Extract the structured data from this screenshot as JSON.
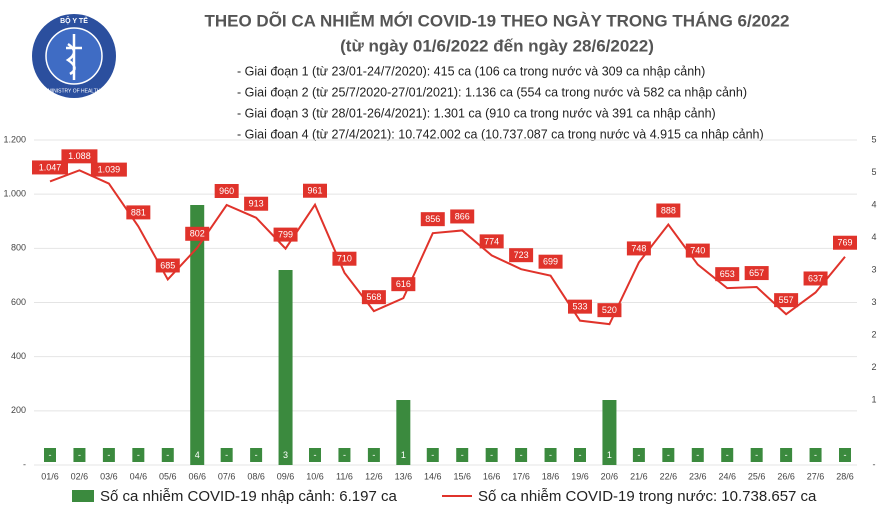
{
  "logo": {
    "top": "BỘ Y TẾ",
    "bottom": "MINISTRY OF HEALTH"
  },
  "chart_data": {
    "type": "combo",
    "title": "THEO DÕI CA NHIỄM MỚI COVID-19 THEO NGÀY TRONG THÁNG 6/2022",
    "subtitle": "(từ ngày 01/6/2022 đến ngày 28/6/2022)",
    "notes": [
      "- Giai đoạn 1 (từ 23/01-24/7/2020): 415 ca (106 ca trong nước và 309 ca nhập cảnh)",
      "- Giai đoạn 2 (từ 25/7/2020-27/01/2021): 1.136 ca (554 ca trong nước và 582 ca nhập cảnh)",
      "- Giai đoạn 3 (từ 28/01-26/4/2021): 1.301 ca (910 ca trong nước và 391 ca nhập cảnh)",
      "- Giai đoạn 4 (từ 27/4/2021): 10.742.002 ca (10.737.087 ca trong nước và 4.915 ca nhập cảnh)"
    ],
    "categories": [
      "01/6",
      "02/6",
      "03/6",
      "04/6",
      "05/6",
      "06/6",
      "07/6",
      "08/6",
      "09/6",
      "10/6",
      "11/6",
      "12/6",
      "13/6",
      "14/6",
      "15/6",
      "16/6",
      "17/6",
      "18/6",
      "19/6",
      "20/6",
      "21/6",
      "22/6",
      "23/6",
      "24/6",
      "25/6",
      "26/6",
      "27/6",
      "28/6"
    ],
    "series": [
      {
        "name": "Số ca nhiễm COVID-19 nhập cảnh: 6.197 ca",
        "type": "bar",
        "axis": "y2",
        "color": "#3b8a3e",
        "values": [
          0,
          0,
          0,
          0,
          0,
          4,
          0,
          0,
          3,
          0,
          0,
          0,
          1,
          0,
          0,
          0,
          0,
          0,
          0,
          1,
          0,
          0,
          0,
          0,
          0,
          0,
          0,
          0
        ],
        "value_labels": [
          "-",
          "-",
          "-",
          "-",
          "-",
          "4",
          "-",
          "-",
          "3",
          "-",
          "-",
          "-",
          "1",
          "-",
          "-",
          "-",
          "-",
          "-",
          "-",
          "1",
          "-",
          "-",
          "-",
          "-",
          "-",
          "-",
          "-",
          "-"
        ]
      },
      {
        "name": "Số ca nhiễm COVID-19 trong nước: 10.738.657 ca",
        "type": "line",
        "color": "#e0332b",
        "values": [
          1047,
          1088,
          1039,
          881,
          685,
          802,
          960,
          913,
          799,
          961,
          710,
          568,
          616,
          856,
          866,
          774,
          723,
          699,
          533,
          520,
          748,
          888,
          740,
          653,
          657,
          557,
          637,
          769
        ],
        "value_labels": [
          "1.047",
          "1.088",
          "1.039",
          "881",
          "685",
          "802",
          "960",
          "913",
          "799",
          "961",
          "710",
          "568",
          "616",
          "856",
          "866",
          "774",
          "723",
          "699",
          "533",
          "520",
          "748",
          "888",
          "740",
          "653",
          "657",
          "557",
          "637",
          "769"
        ]
      }
    ],
    "ylim": [
      0,
      1200
    ],
    "yticks": [
      {
        "value": 0,
        "label": "-"
      },
      200,
      400,
      600,
      800,
      {
        "value": 1000,
        "label": "1.000"
      },
      {
        "value": 1200,
        "label": "1.200"
      }
    ],
    "y2lim": [
      0,
      5
    ],
    "y2ticks": [
      {
        "value": 0,
        "label": "-"
      },
      1,
      {
        "value": 1.5,
        "label": "2"
      },
      2,
      {
        "value": 2.5,
        "label": "3"
      },
      3,
      {
        "value": 3.5,
        "label": "4"
      },
      4,
      {
        "value": 4.5,
        "label": "5"
      },
      5
    ],
    "grid": true
  }
}
